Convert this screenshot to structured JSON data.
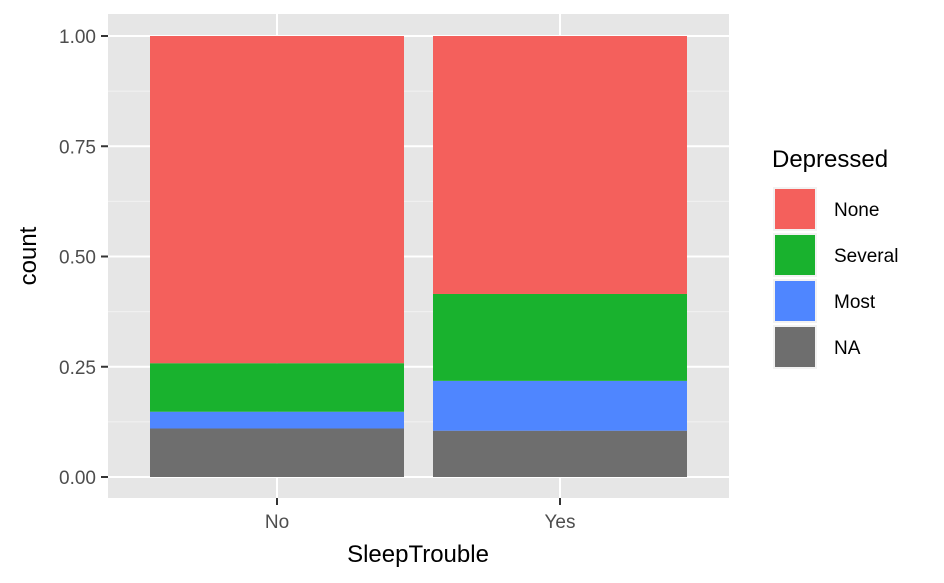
{
  "chart_data": {
    "type": "bar",
    "stacked": true,
    "position": "fill",
    "categories": [
      "No",
      "Yes"
    ],
    "xlabel": "SleepTrouble",
    "ylabel": "count",
    "ylim": [
      0,
      1
    ],
    "yticks": [
      "0.00",
      "0.25",
      "0.50",
      "0.75",
      "1.00"
    ],
    "grid": true,
    "legend": {
      "title": "Depressed",
      "placement": "right"
    },
    "series": [
      {
        "name": "NA",
        "color": "#6e6e6e",
        "values": [
          0.11,
          0.105
        ]
      },
      {
        "name": "Most",
        "color": "#4f86ff",
        "values": [
          0.038,
          0.113
        ]
      },
      {
        "name": "Several",
        "color": "#19b22e",
        "values": [
          0.11,
          0.197
        ]
      },
      {
        "name": "None",
        "color": "#f4605c",
        "values": [
          0.742,
          0.585
        ]
      }
    ],
    "legend_order": [
      "None",
      "Several",
      "Most",
      "NA"
    ]
  }
}
